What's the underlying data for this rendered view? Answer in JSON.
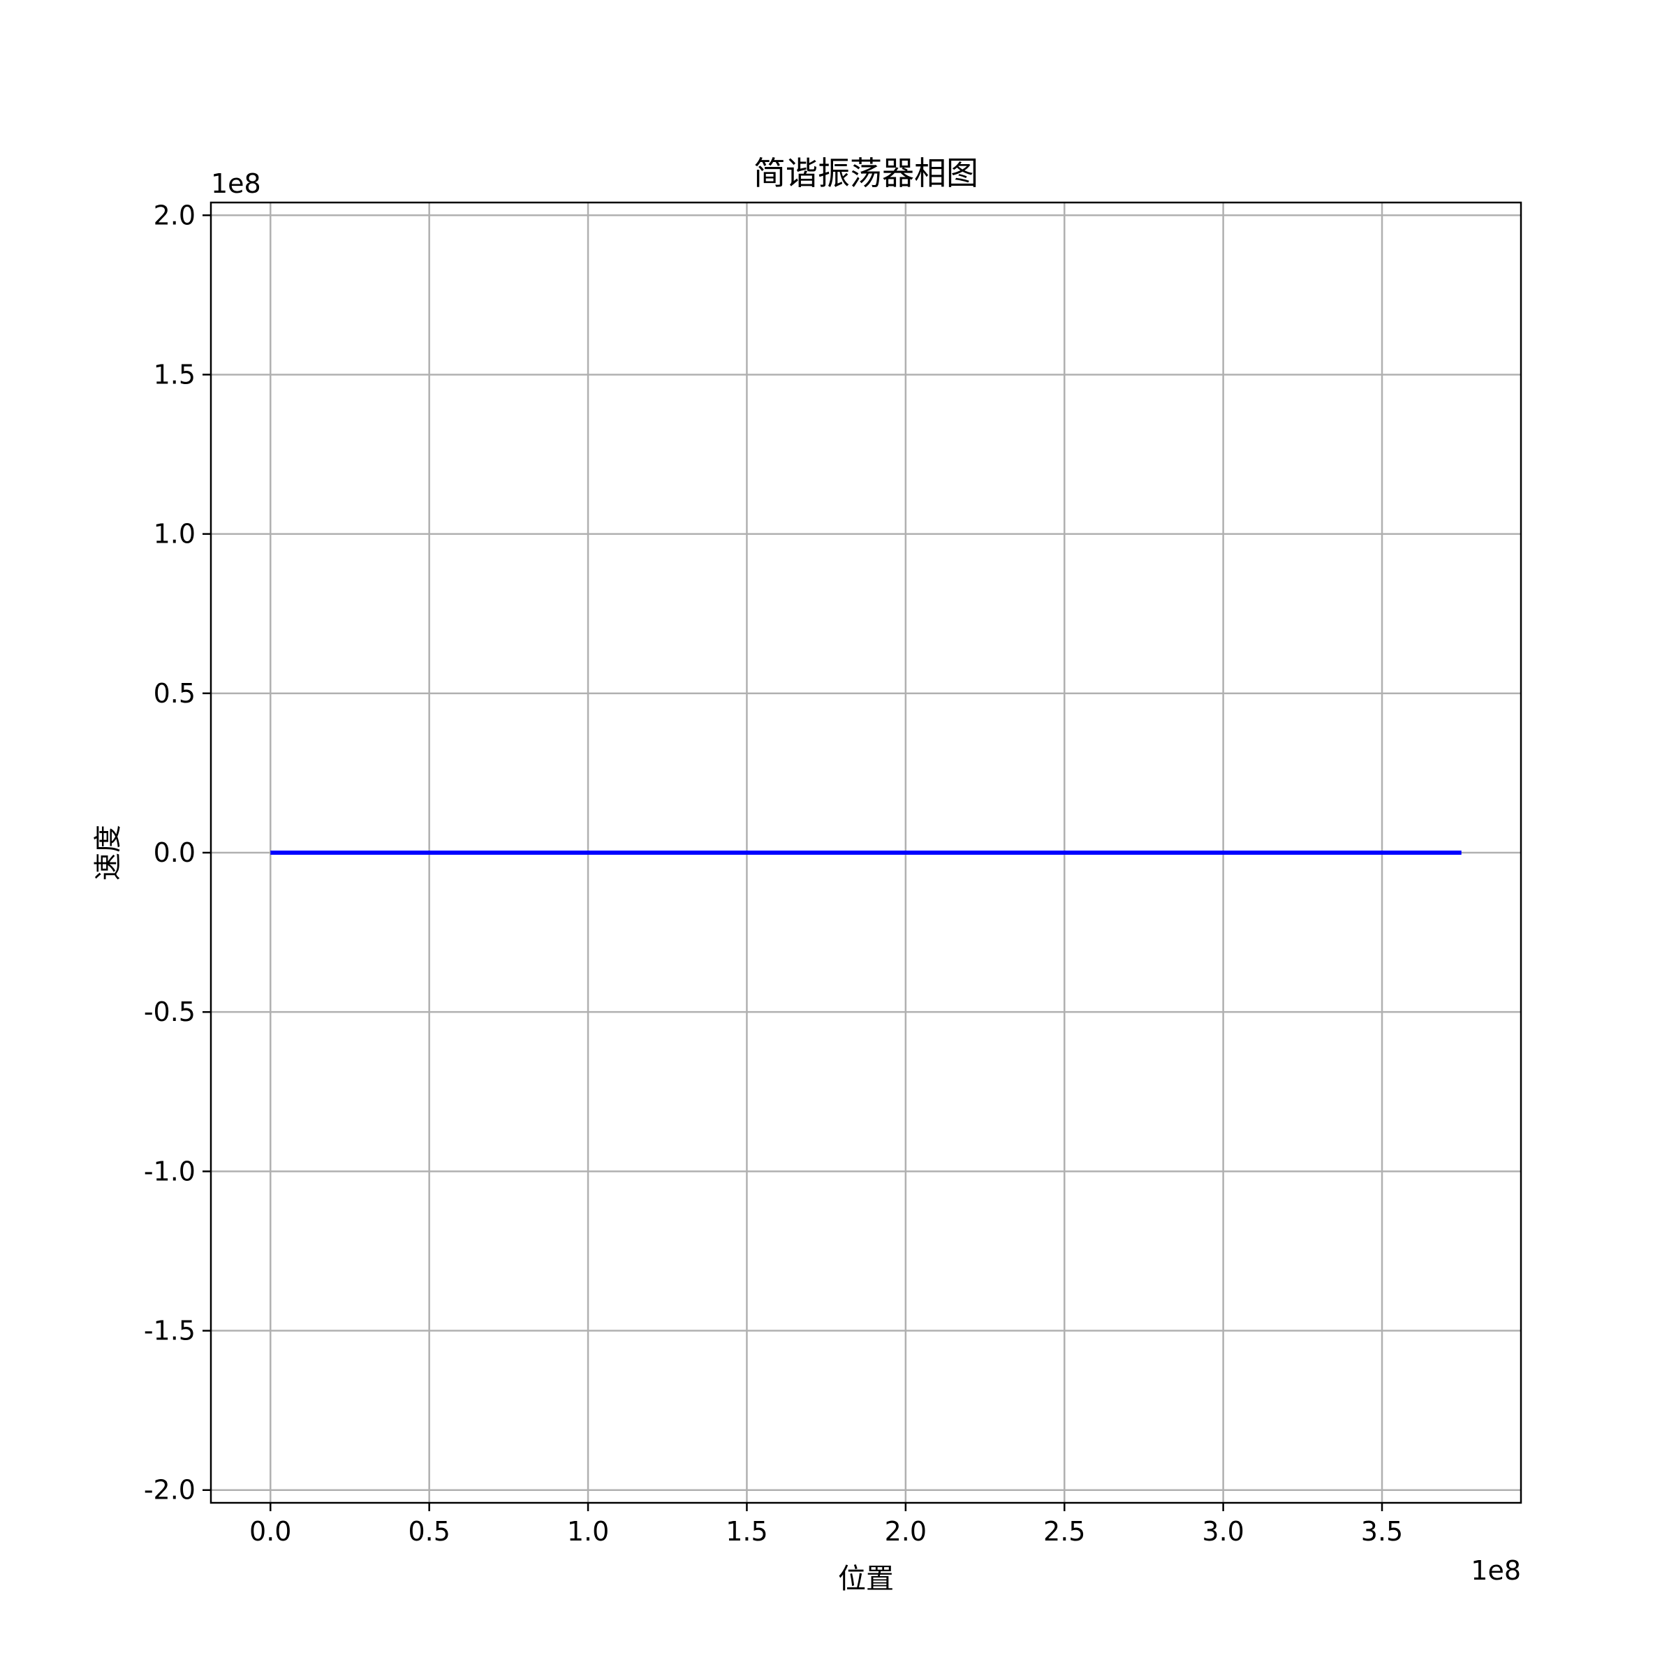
{
  "chart_data": {
    "type": "line",
    "title": "简谐振荡器相图",
    "xlabel": "位置",
    "ylabel": "速度",
    "x_offset_text": "1e8",
    "y_offset_text": "1e8",
    "xlim": [
      -18750000,
      393750000
    ],
    "ylim": [
      -204000000,
      204000000
    ],
    "x_ticks": [
      0,
      50000000,
      100000000,
      150000000,
      200000000,
      250000000,
      300000000,
      350000000
    ],
    "x_tick_labels": [
      "0.0",
      "0.5",
      "1.0",
      "1.5",
      "2.0",
      "2.5",
      "3.0",
      "3.5"
    ],
    "y_ticks": [
      200000000,
      150000000,
      100000000,
      50000000,
      0,
      -50000000,
      -100000000,
      -150000000,
      -200000000
    ],
    "y_tick_labels": [
      "2.0",
      "1.5",
      "1.0",
      "0.5",
      "0.0",
      "-0.5",
      "-1.0",
      "-1.5",
      "-2.0"
    ],
    "grid": true,
    "series": [
      {
        "color": "#0000ff",
        "x": [
          0,
          375000000
        ],
        "y": [
          0,
          0
        ]
      }
    ],
    "colors": {
      "grid": "#b0b0b0",
      "axes": "#000000",
      "background": "#ffffff"
    }
  }
}
